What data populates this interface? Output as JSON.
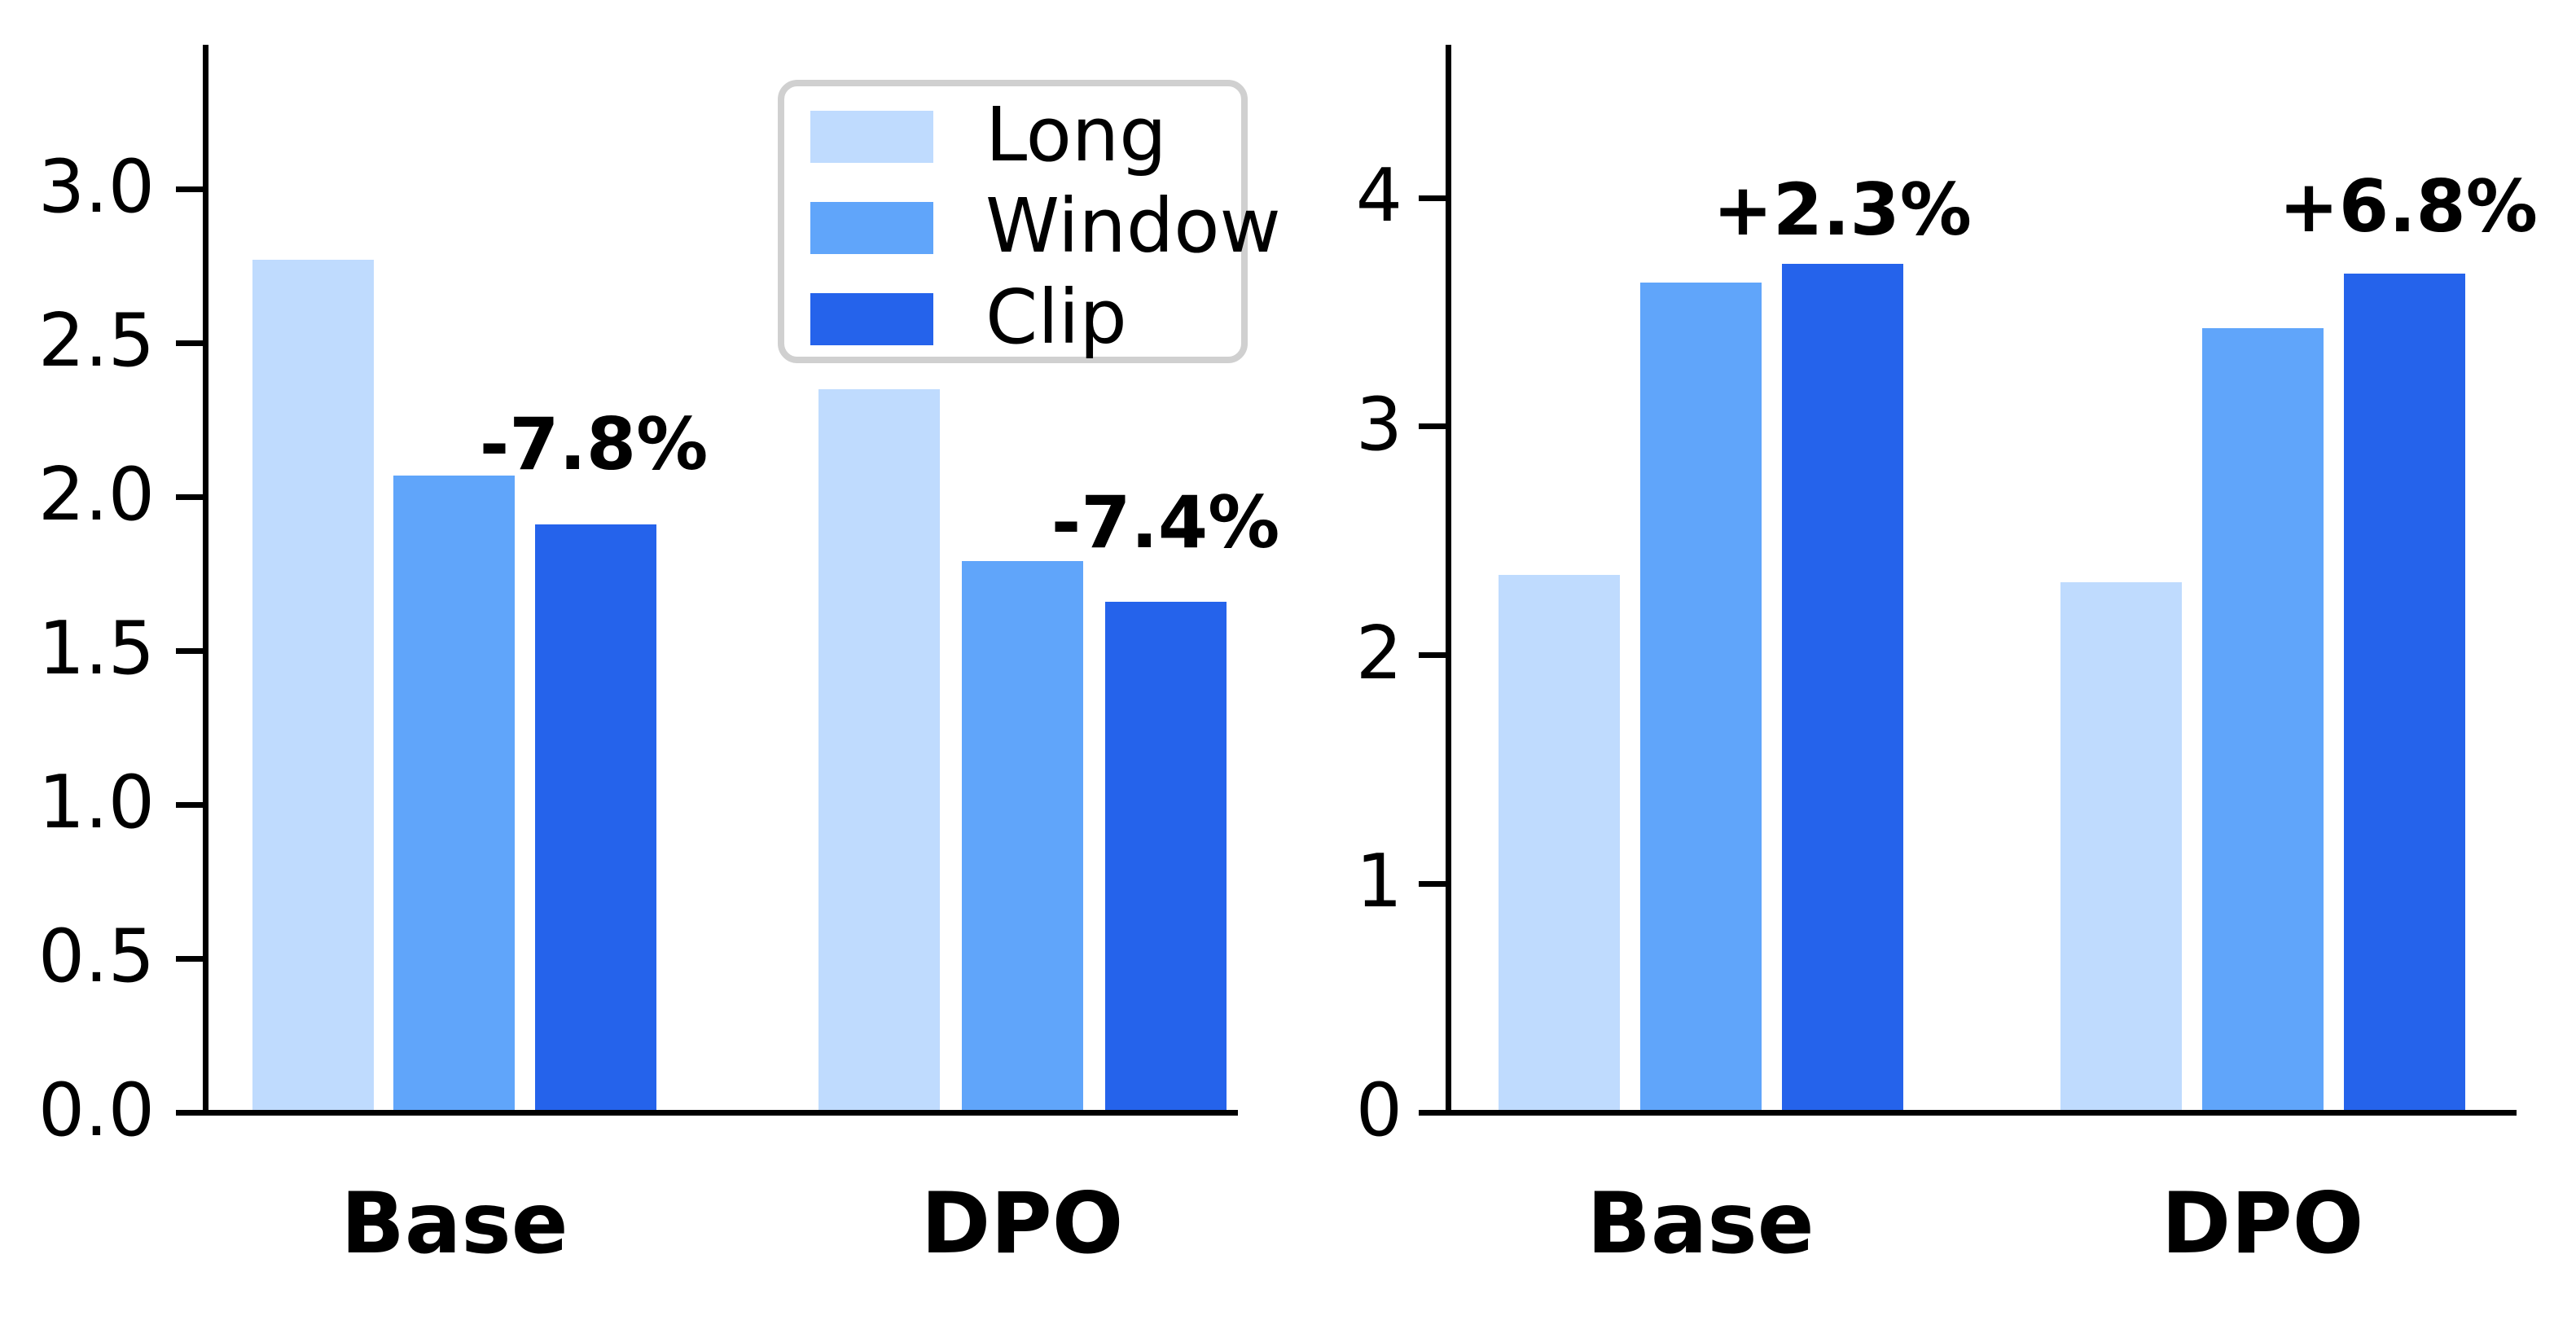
{
  "figure": {
    "background": "#ffffff"
  },
  "colors": {
    "long": "#BFDBFE",
    "window": "#60A5FA",
    "clip": "#2563EB",
    "axis": "#000000",
    "legend_border": "#D0D0D0",
    "text": "#000000"
  },
  "chart_data": [
    {
      "type": "bar",
      "title": "",
      "xlabel": "",
      "ylabel": "",
      "categories": [
        "Base",
        "DPO"
      ],
      "series": [
        {
          "name": "Long",
          "values": [
            2.77,
            2.35
          ]
        },
        {
          "name": "Window",
          "values": [
            2.07,
            1.79
          ]
        },
        {
          "name": "Clip",
          "values": [
            1.91,
            1.66
          ]
        }
      ],
      "annotations": [
        {
          "text": "-7.8%",
          "over_category": "Base",
          "above_series": "Clip"
        },
        {
          "text": "-7.4%",
          "over_category": "DPO",
          "above_series": "Clip"
        }
      ],
      "ylim": [
        0,
        3.47
      ],
      "yticks": [
        0.0,
        0.5,
        1.0,
        1.5,
        2.0,
        2.5,
        3.0
      ],
      "ytick_labels": [
        "0.0",
        "0.5",
        "1.0",
        "1.5",
        "2.0",
        "2.5",
        "3.0"
      ],
      "legend": {
        "position": "upper right",
        "entries": [
          "Long",
          "Window",
          "Clip"
        ]
      },
      "grid": false
    },
    {
      "type": "bar",
      "title": "",
      "xlabel": "",
      "ylabel": "",
      "categories": [
        "Base",
        "DPO"
      ],
      "series": [
        {
          "name": "Long",
          "values": [
            2.35,
            2.32
          ]
        },
        {
          "name": "Window",
          "values": [
            3.63,
            3.43
          ]
        },
        {
          "name": "Clip",
          "values": [
            3.71,
            3.67
          ]
        }
      ],
      "annotations": [
        {
          "text": "+2.3%",
          "over_category": "Base",
          "above_series": "Clip"
        },
        {
          "text": "+6.8%",
          "over_category": "DPO",
          "above_series": "Clip"
        }
      ],
      "ylim": [
        0,
        4.67
      ],
      "yticks": [
        0,
        1,
        2,
        3,
        4
      ],
      "ytick_labels": [
        "0",
        "1",
        "2",
        "3",
        "4"
      ],
      "legend": null,
      "grid": false
    }
  ]
}
